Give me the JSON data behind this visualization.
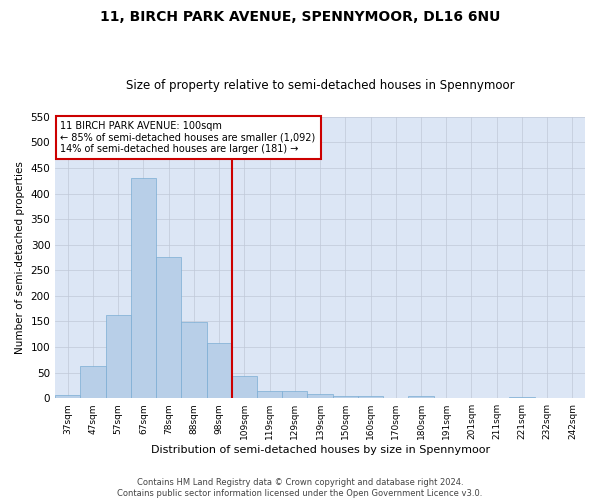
{
  "title": "11, BIRCH PARK AVENUE, SPENNYMOOR, DL16 6NU",
  "subtitle": "Size of property relative to semi-detached houses in Spennymoor",
  "xlabel": "Distribution of semi-detached houses by size in Spennymoor",
  "ylabel": "Number of semi-detached properties",
  "categories": [
    "37sqm",
    "47sqm",
    "57sqm",
    "67sqm",
    "78sqm",
    "88sqm",
    "98sqm",
    "109sqm",
    "119sqm",
    "129sqm",
    "139sqm",
    "150sqm",
    "160sqm",
    "170sqm",
    "180sqm",
    "191sqm",
    "201sqm",
    "211sqm",
    "221sqm",
    "232sqm",
    "242sqm"
  ],
  "values": [
    7,
    62,
    163,
    430,
    276,
    149,
    107,
    43,
    14,
    14,
    9,
    4,
    4,
    0,
    5,
    0,
    0,
    0,
    2,
    0,
    0
  ],
  "bar_color": "#b8cfe8",
  "bar_edge_color": "#7aadd4",
  "property_line_x": 6.5,
  "annotation_text_line1": "11 BIRCH PARK AVENUE: 100sqm",
  "annotation_text_line2": "← 85% of semi-detached houses are smaller (1,092)",
  "annotation_text_line3": "14% of semi-detached houses are larger (181) →",
  "annotation_box_color": "#ffffff",
  "annotation_box_edge": "#cc0000",
  "vline_color": "#cc0000",
  "ylim": [
    0,
    550
  ],
  "yticks": [
    0,
    50,
    100,
    150,
    200,
    250,
    300,
    350,
    400,
    450,
    500,
    550
  ],
  "footer1": "Contains HM Land Registry data © Crown copyright and database right 2024.",
  "footer2": "Contains public sector information licensed under the Open Government Licence v3.0.",
  "background_color": "#ffffff",
  "plot_bg_color": "#dce6f5",
  "grid_color": "#c0c8d8"
}
